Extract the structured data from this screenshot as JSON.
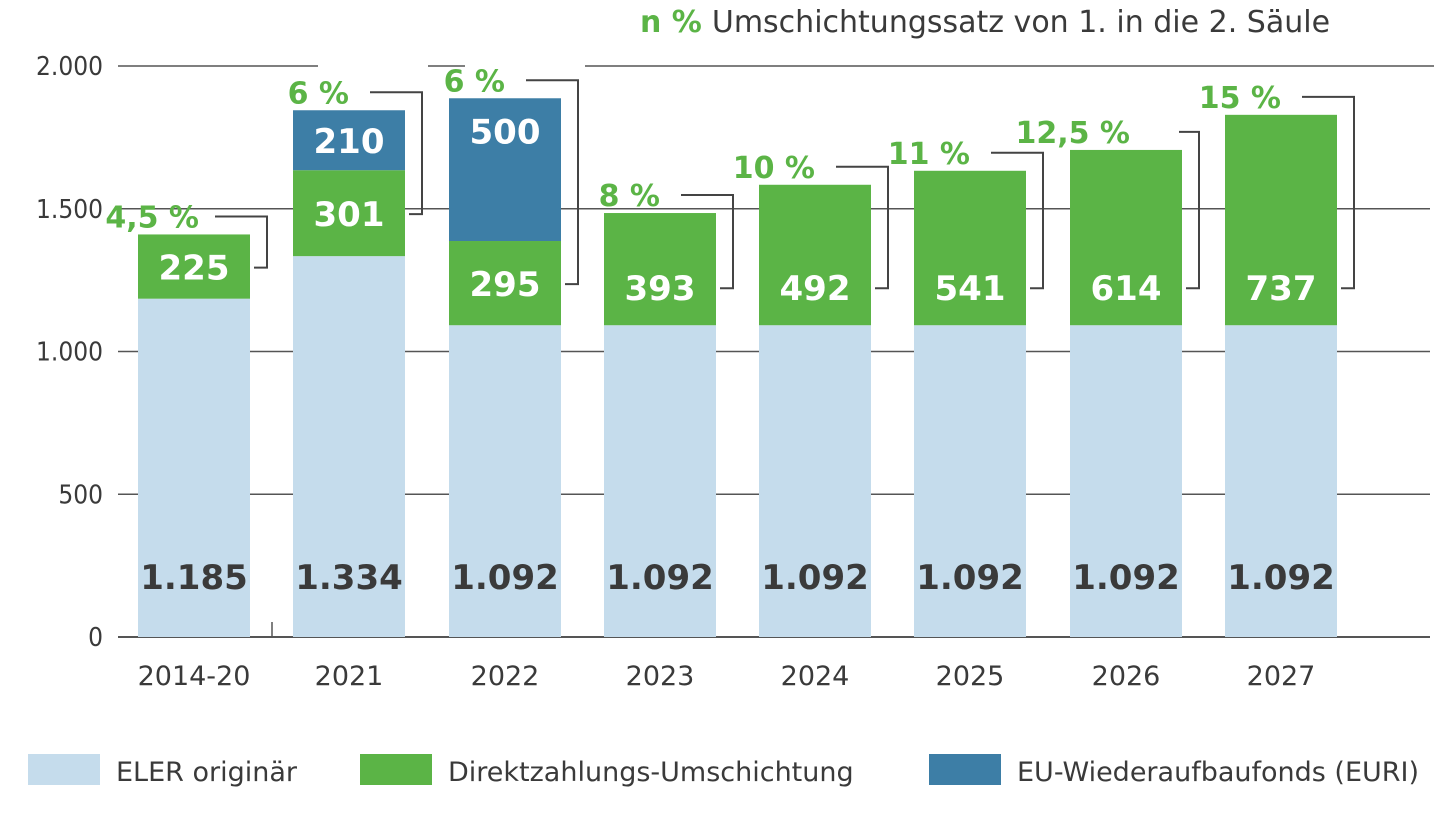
{
  "chart_data": {
    "type": "bar",
    "stacked": true,
    "title_marker": "n %",
    "title": "Umschichtungssatz von 1. in die 2. Säule",
    "xlabel": "",
    "ylabel": "",
    "ylim": [
      0,
      2000
    ],
    "yticks": [
      0,
      500,
      1000,
      1500,
      2000
    ],
    "ytick_labels": [
      "0",
      "500",
      "1.000",
      "1.500",
      "2.000"
    ],
    "grid": true,
    "legend_position": "bottom",
    "categories": [
      "2014-20",
      "2021",
      "2022",
      "2023",
      "2024",
      "2025",
      "2026",
      "2027"
    ],
    "series": [
      {
        "name": "ELER originär",
        "color": "#c5dcec",
        "values": [
          1185,
          1334,
          1092,
          1092,
          1092,
          1092,
          1092,
          1092
        ],
        "labels": [
          "1.185",
          "1.334",
          "1.092",
          "1.092",
          "1.092",
          "1.092",
          "1.092",
          "1.092"
        ]
      },
      {
        "name": "Direktzahlungs-Umschichtung",
        "color": "#5bb446",
        "values": [
          225,
          301,
          295,
          393,
          492,
          541,
          614,
          737
        ],
        "labels": [
          "225",
          "301",
          "295",
          "393",
          "492",
          "541",
          "614",
          "737"
        ]
      },
      {
        "name": "EU-Wiederaufbaufonds (EURI)",
        "color": "#3d7ea6",
        "values": [
          0,
          210,
          500,
          0,
          0,
          0,
          0,
          0
        ],
        "labels": [
          "",
          "210",
          "500",
          "",
          "",
          "",
          "",
          ""
        ]
      }
    ],
    "rate_annotations": [
      "4,5 %",
      "6 %",
      "6 %",
      "8 %",
      "10 %",
      "11 %",
      "12,5 %",
      "15 %"
    ]
  }
}
